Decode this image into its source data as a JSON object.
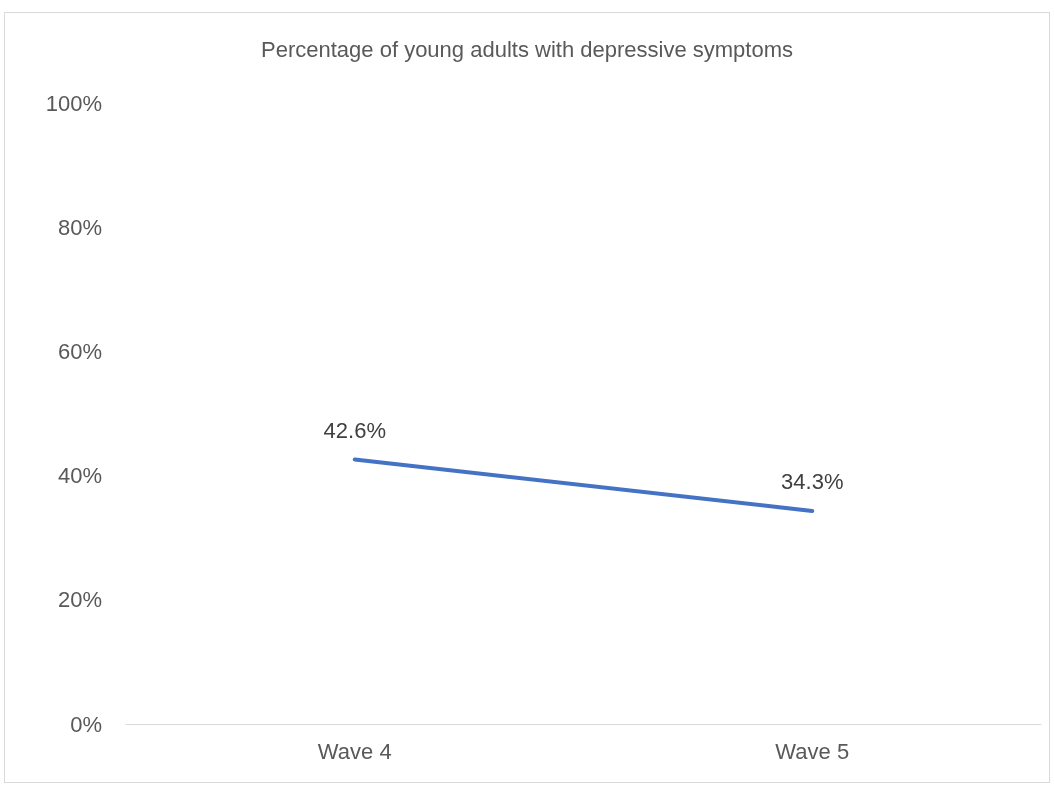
{
  "chart_data": {
    "type": "line",
    "title": "Percentage of young adults with depressive symptoms",
    "categories": [
      "Wave 4",
      "Wave 5"
    ],
    "series": [
      {
        "color": "#4472c4",
        "values": [
          42.6,
          34.3
        ],
        "value_labels": [
          "42.6%",
          "34.3%"
        ]
      }
    ],
    "ylim": [
      0,
      100
    ],
    "yticks": [
      {
        "value": 0,
        "label": "0%"
      },
      {
        "value": 20,
        "label": "20%"
      },
      {
        "value": 40,
        "label": "40%"
      },
      {
        "value": 60,
        "label": "60%"
      },
      {
        "value": 80,
        "label": "80%"
      },
      {
        "value": 100,
        "label": "100%"
      }
    ],
    "grid": false,
    "marker": "none",
    "line_style": "solid"
  }
}
